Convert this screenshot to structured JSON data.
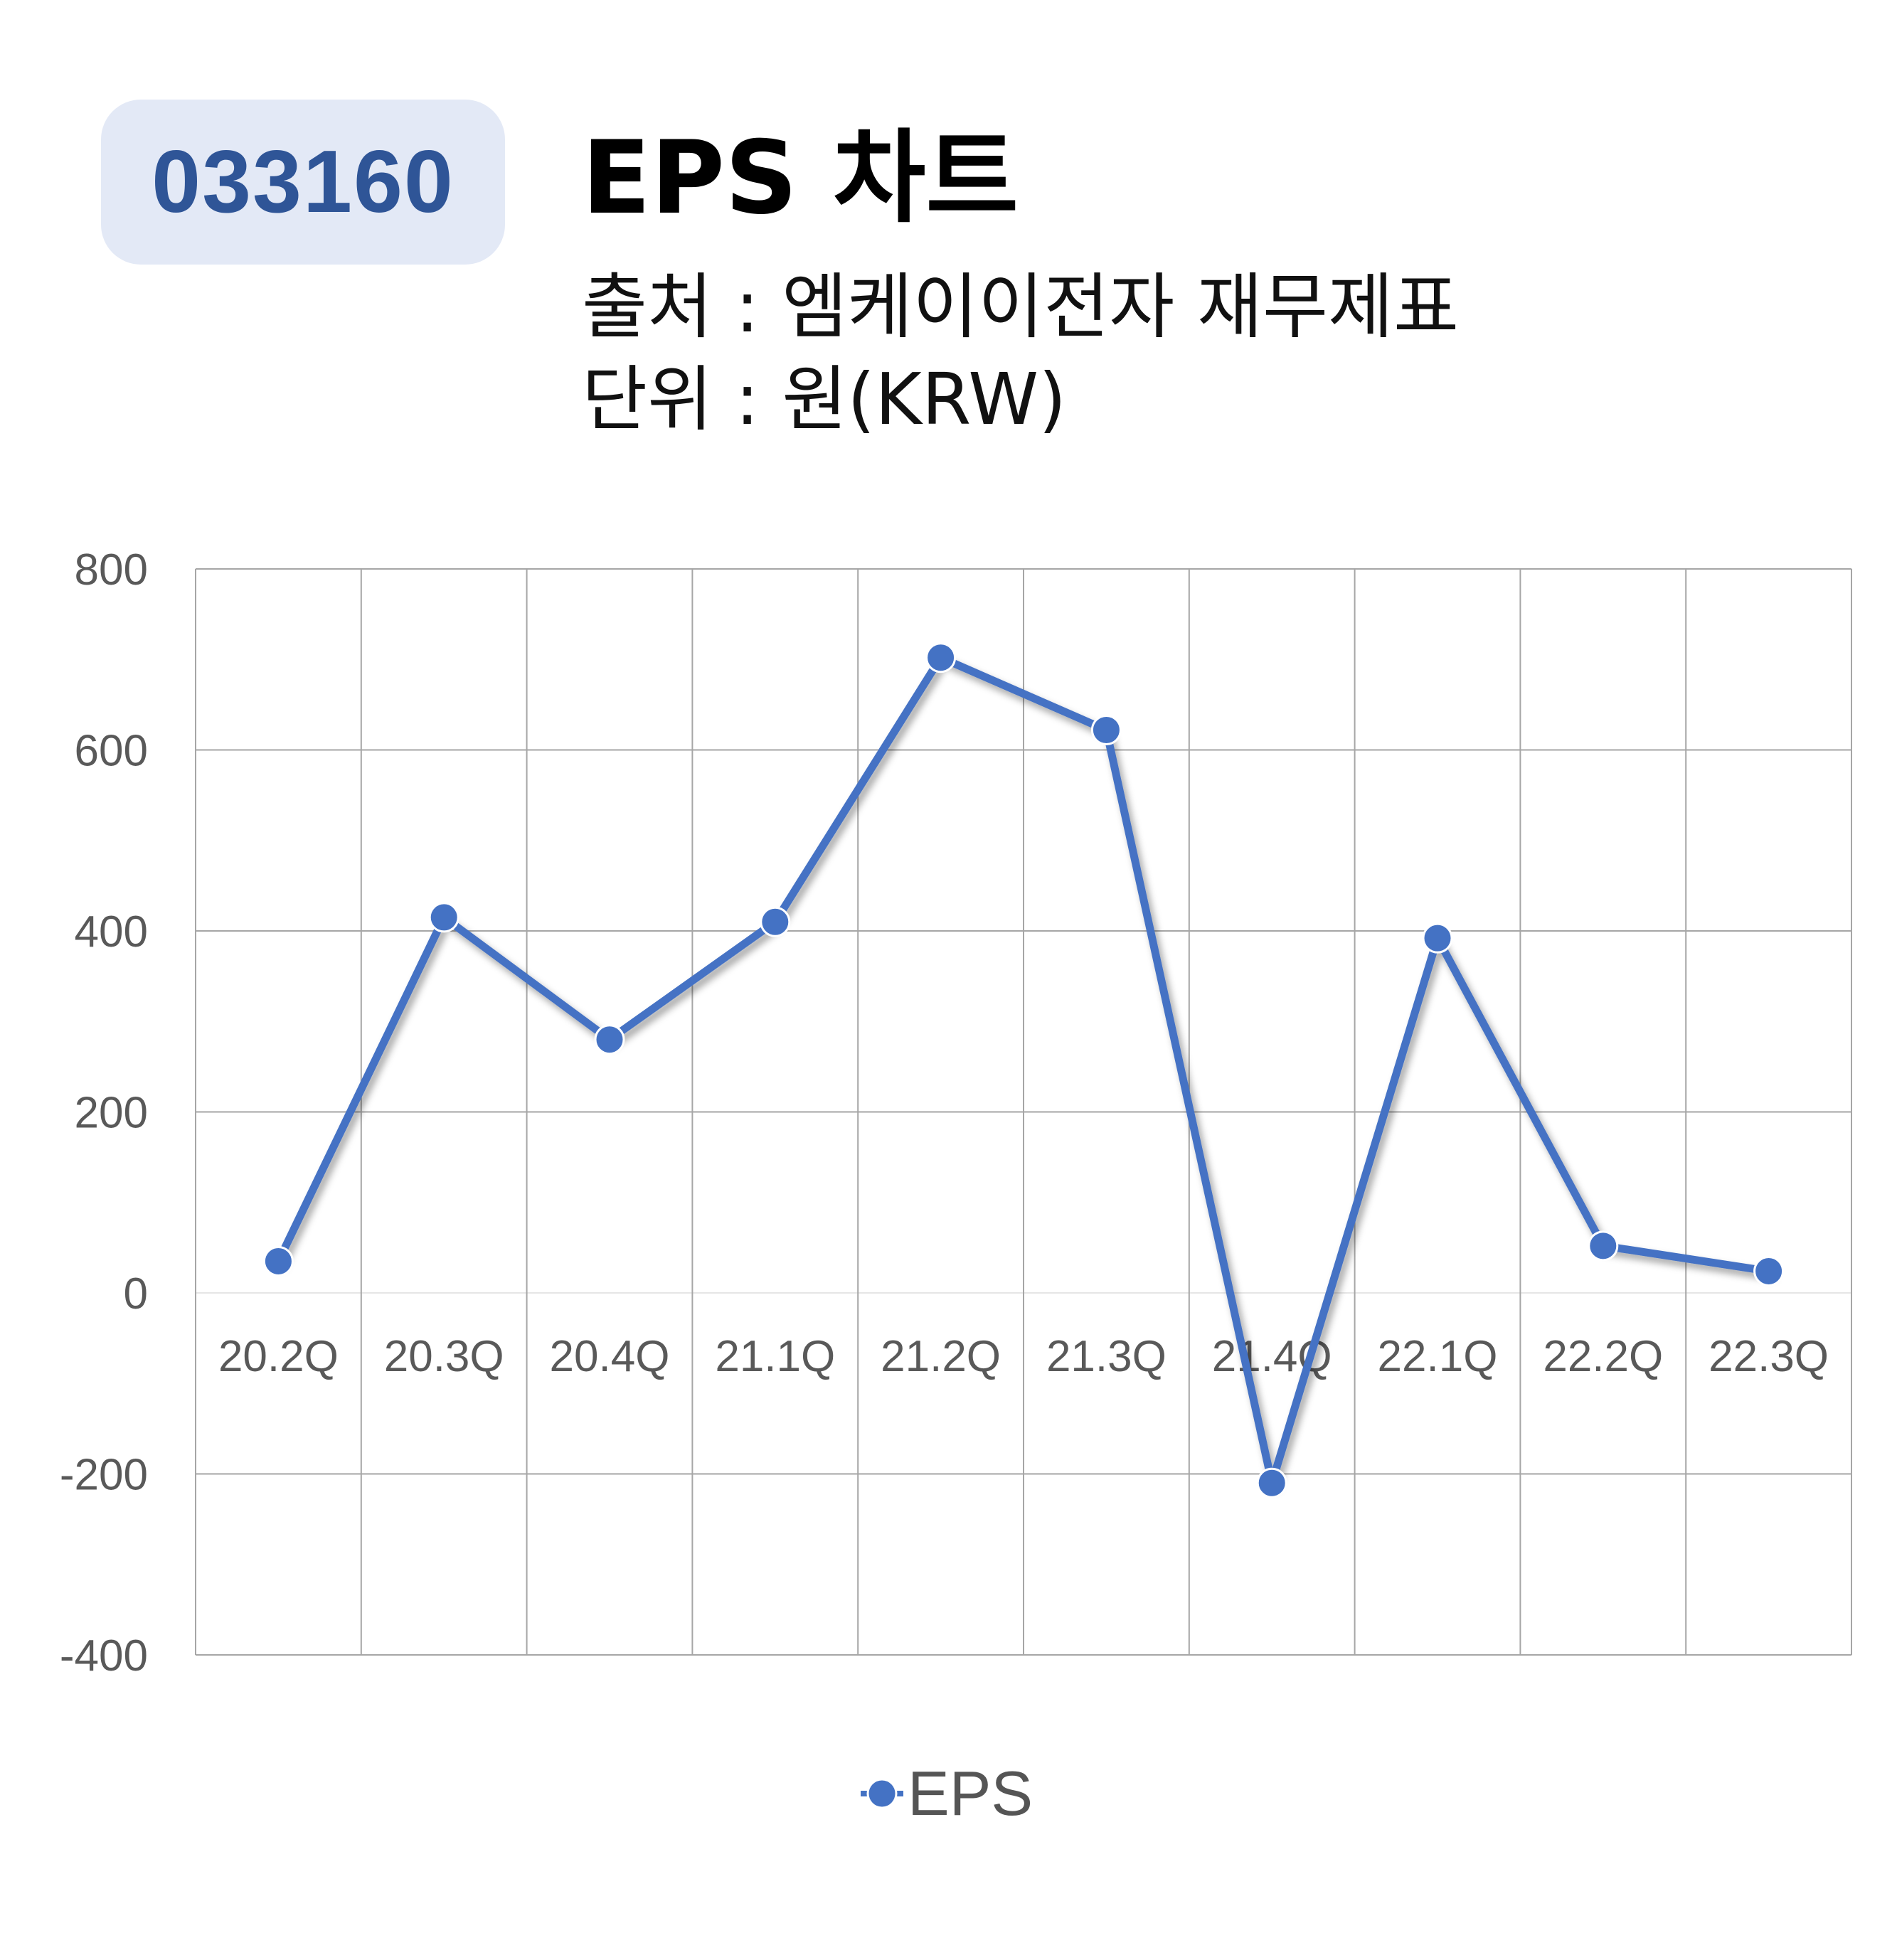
{
  "header": {
    "ticker": "033160",
    "title": "EPS 차트",
    "source": "출처 : 엠케이이전자 재무제표",
    "unit": "단위 : 원(KRW)"
  },
  "colors": {
    "series": "#4472c4",
    "badge_bg": "#e3e9f6",
    "badge_text": "#2f5597",
    "grid": "#a6a6a6",
    "tick_text": "#595959"
  },
  "chart_data": {
    "type": "line",
    "title": "",
    "xlabel": "",
    "ylabel": "",
    "categories": [
      "20.2Q",
      "20.3Q",
      "20.4Q",
      "21.1Q",
      "21.2Q",
      "21.3Q",
      "21.4Q",
      "22.1Q",
      "22.2Q",
      "22.3Q"
    ],
    "series": [
      {
        "name": "EPS",
        "values": [
          35,
          415,
          280,
          410,
          702,
          622,
          -210,
          392,
          52,
          24
        ]
      }
    ],
    "ylim": [
      -400,
      800
    ],
    "yticks": [
      800,
      600,
      400,
      200,
      0,
      -200,
      -400
    ],
    "grid": true,
    "legend_position": "bottom-center"
  }
}
